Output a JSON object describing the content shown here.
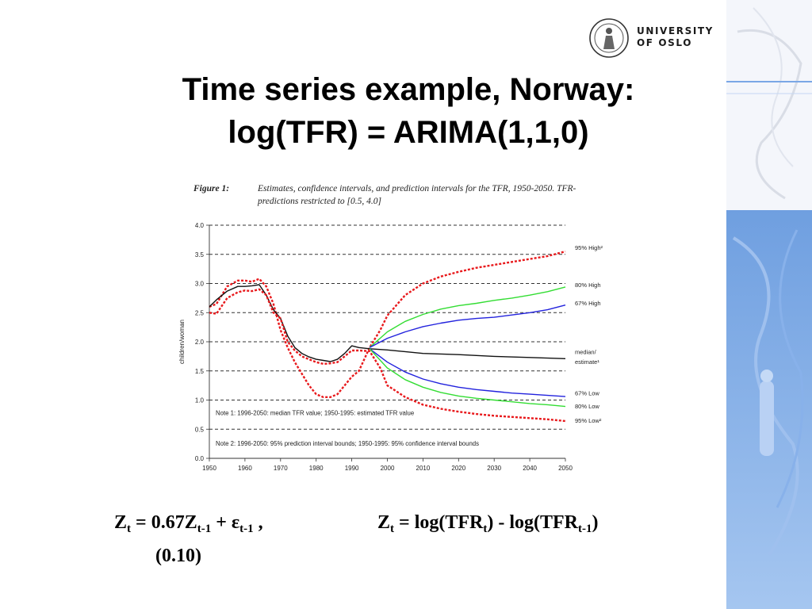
{
  "logo": {
    "line1": "UNIVERSITY",
    "line2": "OF OSLO",
    "seal": "university-seal-icon"
  },
  "slide": {
    "title_line1": "Time series example, Norway:",
    "title_line2": "log(TFR) = ARIMA(1,1,0)"
  },
  "figure": {
    "label": "Figure 1:",
    "caption": "Estimates, confidence intervals, and prediction intervals for the TFR, 1950-2050. TFR-predictions restricted to [0.5, 4.0]"
  },
  "formula": {
    "z": "Z",
    "t": "t",
    "eq1_mid": " = 0.67Z",
    "t1": "t-1",
    "plus_eps": " + ε",
    "comma": " ,",
    "eq2_mid": " = log(TFR",
    "eq2_close": ") - log(TFR",
    "paren": ")",
    "se": "(0.10)"
  },
  "chart_data": {
    "type": "line",
    "title": "",
    "xlabel": "",
    "ylabel": "children/woman",
    "xlim": [
      1950,
      2050
    ],
    "ylim": [
      0.0,
      4.0
    ],
    "x_ticks": [
      1950,
      1960,
      1970,
      1980,
      1990,
      2000,
      2010,
      2020,
      2030,
      2040,
      2050
    ],
    "y_ticks": [
      "0.0",
      "0.5",
      "1.0",
      "1.5",
      "2.0",
      "2.5",
      "3.0",
      "3.5",
      "4.0"
    ],
    "grid": "horizontal dashed",
    "notes": [
      "Note 1: 1996-2050: median TFR value; 1950-1995: estimated TFR value",
      "Note 2: 1996-2050: 95% prediction interval bounds; 1950-1995: 95% confidence interval  bounds"
    ],
    "series": [
      {
        "name": "95% High²",
        "color": "#e8191c",
        "style": "dotted-thick",
        "x": [
          1950,
          1952,
          1955,
          1958,
          1960,
          1962,
          1964,
          1966,
          1968,
          1970,
          1972,
          1974,
          1976,
          1978,
          1980,
          1982,
          1984,
          1986,
          1988,
          1990,
          1992,
          1995,
          1998,
          2000,
          2005,
          2010,
          2015,
          2020,
          2025,
          2030,
          2035,
          2040,
          2045,
          2050
        ],
        "y": [
          2.6,
          2.65,
          2.95,
          3.05,
          3.05,
          3.03,
          3.08,
          2.95,
          2.65,
          2.2,
          1.9,
          1.65,
          1.45,
          1.25,
          1.1,
          1.05,
          1.05,
          1.1,
          1.25,
          1.4,
          1.5,
          1.9,
          2.2,
          2.45,
          2.8,
          3.0,
          3.12,
          3.2,
          3.27,
          3.32,
          3.37,
          3.42,
          3.47,
          3.55
        ]
      },
      {
        "name": "80% High",
        "color": "#33dd33",
        "style": "solid",
        "x": [
          1995,
          2000,
          2005,
          2010,
          2015,
          2020,
          2025,
          2030,
          2035,
          2040,
          2045,
          2050
        ],
        "y": [
          1.9,
          2.17,
          2.35,
          2.47,
          2.56,
          2.62,
          2.66,
          2.71,
          2.75,
          2.8,
          2.86,
          2.94
        ]
      },
      {
        "name": "67% High",
        "color": "#2222dd",
        "style": "solid",
        "x": [
          1995,
          2000,
          2005,
          2010,
          2015,
          2020,
          2025,
          2030,
          2035,
          2040,
          2045,
          2050
        ],
        "y": [
          1.9,
          2.06,
          2.17,
          2.26,
          2.32,
          2.37,
          2.4,
          2.42,
          2.46,
          2.5,
          2.55,
          2.63
        ]
      },
      {
        "name": "median/ estimate¹",
        "color": "#111111",
        "style": "solid",
        "x": [
          1950,
          1952,
          1955,
          1958,
          1960,
          1962,
          1964,
          1966,
          1968,
          1970,
          1972,
          1974,
          1976,
          1978,
          1980,
          1982,
          1984,
          1986,
          1988,
          1990,
          1992,
          1995,
          2000,
          2010,
          2020,
          2030,
          2040,
          2050
        ],
        "y": [
          2.6,
          2.72,
          2.87,
          2.95,
          2.95,
          2.96,
          2.98,
          2.8,
          2.55,
          2.4,
          2.1,
          1.9,
          1.8,
          1.74,
          1.7,
          1.68,
          1.66,
          1.7,
          1.8,
          1.93,
          1.9,
          1.88,
          1.86,
          1.8,
          1.78,
          1.75,
          1.73,
          1.71
        ]
      },
      {
        "name": "67% Low",
        "color": "#2222dd",
        "style": "solid",
        "x": [
          1995,
          2000,
          2005,
          2010,
          2015,
          2020,
          2025,
          2030,
          2035,
          2040,
          2045,
          2050
        ],
        "y": [
          1.88,
          1.65,
          1.48,
          1.36,
          1.28,
          1.22,
          1.18,
          1.15,
          1.12,
          1.1,
          1.08,
          1.06
        ]
      },
      {
        "name": "80% Low",
        "color": "#33dd33",
        "style": "solid",
        "x": [
          1995,
          2000,
          2005,
          2010,
          2015,
          2020,
          2025,
          2030,
          2035,
          2040,
          2045,
          2050
        ],
        "y": [
          1.88,
          1.55,
          1.35,
          1.22,
          1.13,
          1.07,
          1.03,
          1.0,
          0.97,
          0.94,
          0.92,
          0.89
        ]
      },
      {
        "name": "95% Low²",
        "color": "#e8191c",
        "style": "dotted-thick",
        "x": [
          1950,
          1952,
          1955,
          1958,
          1960,
          1962,
          1964,
          1966,
          1968,
          1970,
          1972,
          1974,
          1976,
          1978,
          1980,
          1982,
          1984,
          1986,
          1988,
          1990,
          1992,
          1995,
          1998,
          2000,
          2005,
          2010,
          2015,
          2020,
          2025,
          2030,
          2035,
          2040,
          2045,
          2050
        ],
        "y": [
          2.5,
          2.48,
          2.75,
          2.85,
          2.88,
          2.87,
          2.9,
          2.8,
          2.5,
          2.4,
          2.0,
          1.85,
          1.75,
          1.7,
          1.65,
          1.62,
          1.63,
          1.65,
          1.75,
          1.85,
          1.85,
          1.84,
          1.55,
          1.25,
          1.05,
          0.92,
          0.85,
          0.8,
          0.76,
          0.73,
          0.71,
          0.69,
          0.67,
          0.64
        ]
      }
    ],
    "annotations": [
      "95% High²",
      "80% High",
      "67% High",
      "median/",
      "estimate¹",
      "67% Low",
      "80% Low",
      "95% Low²"
    ]
  }
}
